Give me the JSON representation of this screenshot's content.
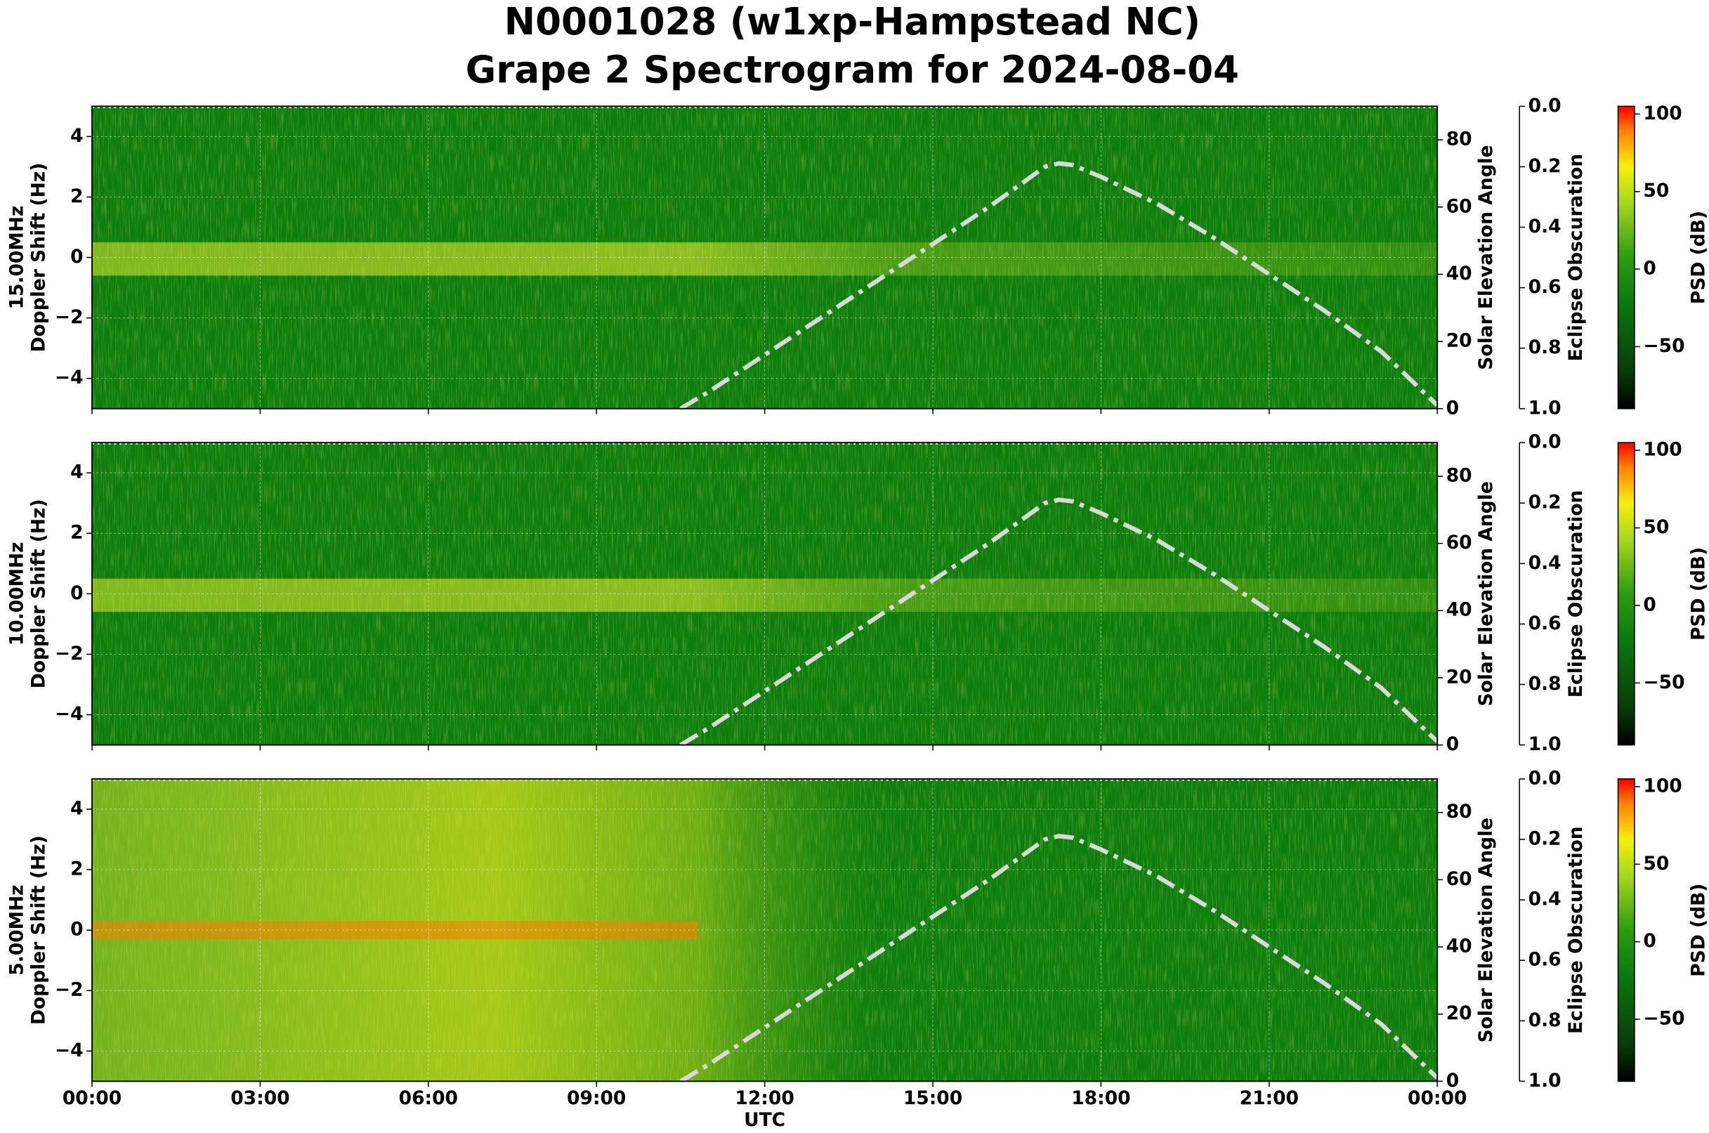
{
  "title": [
    "N0001028 (w1xp-Hampstead NC)",
    "Grape 2 Spectrogram for 2024-08-04"
  ],
  "chart_data": [
    {
      "type": "spectrogram",
      "ylabel": [
        "15.00MHz",
        "Doppler Shift (Hz)"
      ],
      "xlim": [
        0,
        24
      ],
      "xticks": [
        0,
        3,
        6,
        9,
        12,
        15,
        18,
        21,
        24
      ],
      "ylim": [
        -5,
        5
      ],
      "yticks": [
        {
          "value": -4,
          "label": "−4"
        },
        {
          "value": -2,
          "label": "−2"
        },
        0,
        2,
        4
      ],
      "y2label": "Solar Elevation Angle",
      "y2lim": [
        0,
        90
      ],
      "y2ticks": [
        0,
        20,
        40,
        60,
        80
      ],
      "y3label": "Eclipse Obscuration",
      "y3lim": [
        1,
        0
      ],
      "y3ticks": [
        {
          "value": 0,
          "label": "0.0"
        },
        {
          "value": 0.2,
          "label": "0.2"
        },
        {
          "value": 0.4,
          "label": "0.4"
        },
        {
          "value": 0.6,
          "label": "0.6"
        },
        {
          "value": 0.8,
          "label": "0.8"
        },
        {
          "value": 1,
          "label": "1.0"
        }
      ],
      "cbar_label": "PSD (dB)",
      "cbar_lim": [
        -90,
        105
      ],
      "cbar_ticks": [
        {
          "value": -50,
          "label": "−50"
        },
        0,
        50,
        100
      ],
      "x": [
        10.5,
        11,
        12,
        13,
        14,
        15,
        16,
        16.5,
        17,
        17.25,
        17.5,
        18,
        19,
        20,
        21,
        22,
        23,
        24
      ],
      "series": [
        {
          "name": "Solar Elevation Angle",
          "axis": "y2",
          "color": "#d9d9d9",
          "values": [
            0,
            5,
            16,
            27,
            38,
            49,
            60,
            66,
            72,
            73,
            72.5,
            69,
            61,
            51,
            40,
            29,
            17,
            1
          ]
        }
      ],
      "grid": true,
      "band": "quiet"
    },
    {
      "type": "spectrogram",
      "ylabel": [
        "10.00MHz",
        "Doppler Shift (Hz)"
      ],
      "xlim": [
        0,
        24
      ],
      "xticks": [
        0,
        3,
        6,
        9,
        12,
        15,
        18,
        21,
        24
      ],
      "ylim": [
        -5,
        5
      ],
      "yticks": [
        {
          "value": -4,
          "label": "−4"
        },
        {
          "value": -2,
          "label": "−2"
        },
        0,
        2,
        4
      ],
      "y2label": "Solar Elevation Angle",
      "y2lim": [
        0,
        90
      ],
      "y2ticks": [
        0,
        20,
        40,
        60,
        80
      ],
      "y3label": "Eclipse Obscuration",
      "y3lim": [
        1,
        0
      ],
      "y3ticks": [
        {
          "value": 0,
          "label": "0.0"
        },
        {
          "value": 0.2,
          "label": "0.2"
        },
        {
          "value": 0.4,
          "label": "0.4"
        },
        {
          "value": 0.6,
          "label": "0.6"
        },
        {
          "value": 0.8,
          "label": "0.8"
        },
        {
          "value": 1,
          "label": "1.0"
        }
      ],
      "cbar_label": "PSD (dB)",
      "cbar_lim": [
        -90,
        105
      ],
      "cbar_ticks": [
        {
          "value": -50,
          "label": "−50"
        },
        0,
        50,
        100
      ],
      "x": [
        10.5,
        11,
        12,
        13,
        14,
        15,
        16,
        16.5,
        17,
        17.25,
        17.5,
        18,
        19,
        20,
        21,
        22,
        23,
        24
      ],
      "series": [
        {
          "name": "Solar Elevation Angle",
          "axis": "y2",
          "color": "#d9d9d9",
          "values": [
            0,
            5,
            16,
            27,
            38,
            49,
            60,
            66,
            72,
            73,
            72.5,
            69,
            61,
            51,
            40,
            29,
            17,
            1
          ]
        }
      ],
      "grid": true,
      "band": "quiet"
    },
    {
      "type": "spectrogram",
      "ylabel": [
        "5.00MHz",
        "Doppler Shift (Hz)"
      ],
      "xlabel": "UTC",
      "xlim": [
        0,
        24
      ],
      "xticks": [
        {
          "value": 0,
          "label": "00:00"
        },
        {
          "value": 3,
          "label": "03:00"
        },
        {
          "value": 6,
          "label": "06:00"
        },
        {
          "value": 9,
          "label": "09:00"
        },
        {
          "value": 12,
          "label": "12:00"
        },
        {
          "value": 15,
          "label": "15:00"
        },
        {
          "value": 18,
          "label": "18:00"
        },
        {
          "value": 21,
          "label": "21:00"
        },
        {
          "value": 24,
          "label": "00:00"
        }
      ],
      "ylim": [
        -5,
        5
      ],
      "yticks": [
        {
          "value": -4,
          "label": "−4"
        },
        {
          "value": -2,
          "label": "−2"
        },
        0,
        2,
        4
      ],
      "y2label": "Solar Elevation Angle",
      "y2lim": [
        0,
        90
      ],
      "y2ticks": [
        0,
        20,
        40,
        60,
        80
      ],
      "y3label": "Eclipse Obscuration",
      "y3lim": [
        1,
        0
      ],
      "y3ticks": [
        {
          "value": 0,
          "label": "0.0"
        },
        {
          "value": 0.2,
          "label": "0.2"
        },
        {
          "value": 0.4,
          "label": "0.4"
        },
        {
          "value": 0.6,
          "label": "0.6"
        },
        {
          "value": 0.8,
          "label": "0.8"
        },
        {
          "value": 1,
          "label": "1.0"
        }
      ],
      "cbar_label": "PSD (dB)",
      "cbar_lim": [
        -90,
        105
      ],
      "cbar_ticks": [
        {
          "value": -50,
          "label": "−50"
        },
        0,
        50,
        100
      ],
      "x": [
        10.5,
        11,
        12,
        13,
        14,
        15,
        16,
        16.5,
        17,
        17.25,
        17.5,
        18,
        19,
        20,
        21,
        22,
        23,
        24
      ],
      "series": [
        {
          "name": "Solar Elevation Angle",
          "axis": "y2",
          "color": "#d9d9d9",
          "values": [
            0,
            5,
            16,
            27,
            38,
            49,
            60,
            66,
            72,
            73,
            72.5,
            69,
            61,
            51,
            40,
            29,
            17,
            1
          ]
        }
      ],
      "grid": true,
      "band": "active"
    }
  ]
}
